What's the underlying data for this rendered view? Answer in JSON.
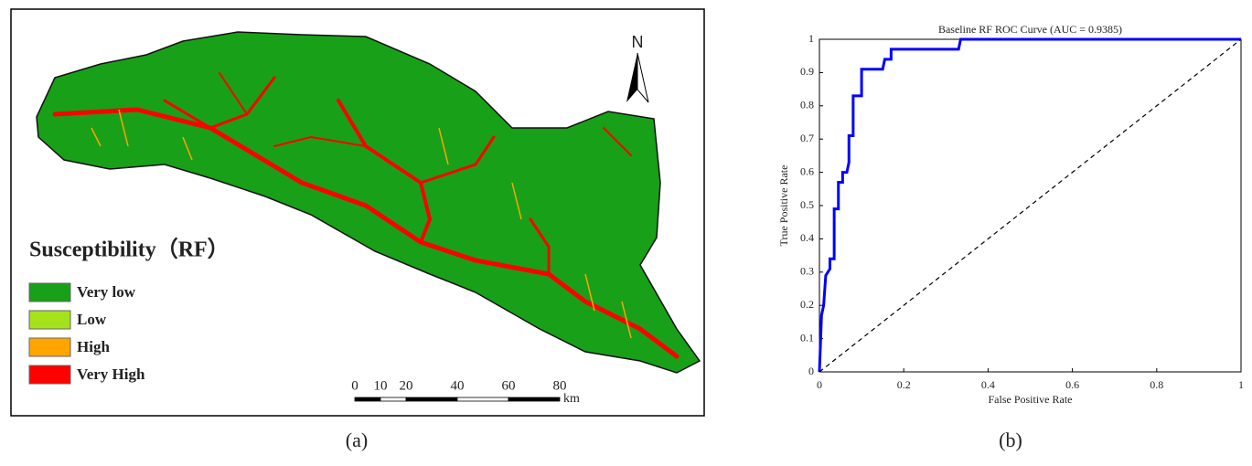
{
  "map_panel": {
    "legend_title": "Susceptibility（RF）",
    "legend": [
      {
        "label": "Very low",
        "color": "#18a018"
      },
      {
        "label": "Low",
        "color": "#a6e21c"
      },
      {
        "label": "High",
        "color": "#ffa500"
      },
      {
        "label": "Very High",
        "color": "#ff0000"
      }
    ],
    "north": "N",
    "scale_bar": {
      "ticks": [
        0,
        10,
        20,
        40,
        60,
        80
      ],
      "unit": "km"
    },
    "caption": "(a)"
  },
  "chart_data": {
    "type": "line",
    "title": "Baseline RF ROC Curve (AUC = 0.9385)",
    "x_label": "False Positive Rate",
    "y_label": "True Positive Rate",
    "series": [
      {
        "color": "#0000ff",
        "x": [
          0,
          0.005,
          0.01,
          0.015,
          0.025,
          0.025,
          0.035,
          0.035,
          0.045,
          0.045,
          0.055,
          0.055,
          0.065,
          0.07,
          0.07,
          0.08,
          0.08,
          0.1,
          0.1,
          0.15,
          0.155,
          0.17,
          0.17,
          0.33,
          0.335,
          1
        ],
        "values": [
          0,
          0.17,
          0.2,
          0.29,
          0.31,
          0.34,
          0.34,
          0.49,
          0.49,
          0.57,
          0.57,
          0.6,
          0.6,
          0.63,
          0.71,
          0.71,
          0.83,
          0.83,
          0.91,
          0.91,
          0.94,
          0.94,
          0.97,
          0.97,
          1,
          1
        ],
        "dashed": false
      },
      {
        "color": "#000000",
        "x": [
          0,
          1
        ],
        "values": [
          0,
          1
        ],
        "dashed": true
      }
    ],
    "xlim": [
      0,
      1
    ],
    "ylim": [
      0,
      1
    ],
    "xticks": [
      0,
      0.2,
      0.4,
      0.6,
      0.8,
      1
    ],
    "yticks": [
      0,
      0.1,
      0.2,
      0.3,
      0.4,
      0.5,
      0.6,
      0.7,
      0.8,
      0.9,
      1
    ],
    "caption": "(b)"
  }
}
